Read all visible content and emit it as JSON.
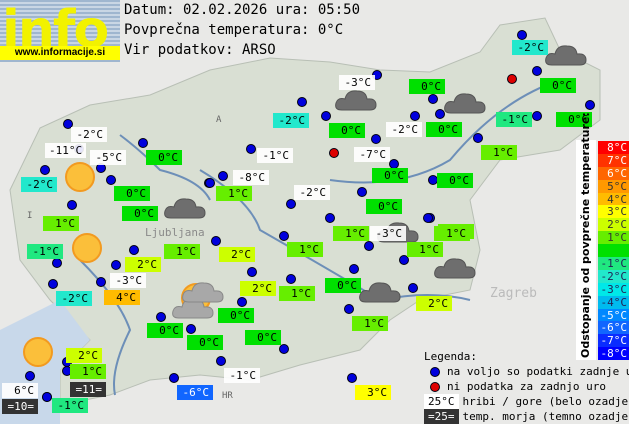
{
  "logo": {
    "text": "info",
    "url": "www.informacije.si"
  },
  "header": {
    "date_line": "Datum: 02.02.2026 ura: 05:50",
    "avg_line": "Povprečna temperatura: 0°C",
    "source_line": "Vir podatkov: ARSO"
  },
  "map_labels": [
    "A",
    "I",
    "HR",
    "Ljubljana",
    "Zagreb"
  ],
  "colors": {
    "white": "#ffffff",
    "-8": "#0000ff",
    "-7": "#0a2cff",
    "-6": "#1166ff",
    "-5": "#0088ff",
    "-4": "#00bbee",
    "-3": "#00e8e8",
    "-2": "#22e8cc",
    "-1": "#20e880",
    "0": "#00e000",
    "1": "#66ee00",
    "2": "#ccff00",
    "3": "#ffff00",
    "4": "#ffbb00",
    "5": "#ff9900",
    "6": "#ff6600",
    "7": "#ff3300",
    "8": "#ff0000",
    "sea": "#333333"
  },
  "stations": [
    {
      "t": "-2°C",
      "c": "-2"
    },
    {
      "t": "0°C",
      "c": "0"
    },
    {
      "t": "-1°C",
      "c": "-1"
    },
    {
      "t": "0°C",
      "c": "0"
    },
    {
      "t": "1°C",
      "c": "1"
    },
    {
      "t": "0°C",
      "c": "0"
    },
    {
      "t": "1°C",
      "c": "1"
    },
    {
      "t": "-3°C",
      "c": "white"
    },
    {
      "t": "0°C",
      "c": "0"
    },
    {
      "t": "-2°C",
      "c": "-2"
    },
    {
      "t": "0°C",
      "c": "0"
    },
    {
      "t": "-2°C",
      "c": "white"
    },
    {
      "t": "0°C",
      "c": "0"
    },
    {
      "t": "-1°C",
      "c": "white"
    },
    {
      "t": "-7°C",
      "c": "white"
    },
    {
      "t": "0°C",
      "c": "0"
    },
    {
      "t": "-8°C",
      "c": "white"
    },
    {
      "t": "1°C",
      "c": "1"
    },
    {
      "t": "-2°C",
      "c": "white"
    },
    {
      "t": "0°C",
      "c": "0"
    },
    {
      "t": "1°C",
      "c": "1"
    },
    {
      "t": "1°C",
      "c": "1"
    },
    {
      "t": "-3°C",
      "c": "white"
    },
    {
      "t": "1°C",
      "c": "1"
    },
    {
      "t": "1°C",
      "c": "1"
    },
    {
      "t": "2°C",
      "c": "2"
    },
    {
      "t": "2°C",
      "c": "2"
    },
    {
      "t": "1°C",
      "c": "1"
    },
    {
      "t": "0°C",
      "c": "0"
    },
    {
      "t": "2°C",
      "c": "2"
    },
    {
      "t": "1°C",
      "c": "1"
    },
    {
      "t": "0°C",
      "c": "0"
    },
    {
      "t": "0°C",
      "c": "0"
    },
    {
      "t": "-2°C",
      "c": "white"
    },
    {
      "t": "-11°C",
      "c": "white"
    },
    {
      "t": "-5°C",
      "c": "white"
    },
    {
      "t": "-2°C",
      "c": "-2"
    },
    {
      "t": "0°C",
      "c": "0"
    },
    {
      "t": "0°C",
      "c": "0"
    },
    {
      "t": "0°C",
      "c": "0"
    },
    {
      "t": "1°C",
      "c": "1"
    },
    {
      "t": "-1°C",
      "c": "-1"
    },
    {
      "t": "2°C",
      "c": "2"
    },
    {
      "t": "-3°C",
      "c": "white"
    },
    {
      "t": "-2°C",
      "c": "-2"
    },
    {
      "t": "4°C",
      "c": "4"
    },
    {
      "t": "0°C",
      "c": "0"
    },
    {
      "t": "0°C",
      "c": "0"
    },
    {
      "t": "2°C",
      "c": "2"
    },
    {
      "t": "1°C",
      "c": "1"
    },
    {
      "t": "=11=",
      "c": "sea"
    },
    {
      "t": "6°C",
      "c": "white"
    },
    {
      "t": "=10=",
      "c": "sea"
    },
    {
      "t": "-1°C",
      "c": "-1"
    },
    {
      "t": "-6°C",
      "c": "-6"
    },
    {
      "t": "-1°C",
      "c": "white"
    },
    {
      "t": "3°C",
      "c": "3"
    },
    {
      "t": "1°C",
      "c": "1"
    }
  ],
  "weather_icons": [
    "sun",
    "sun",
    "sun",
    "sun-cloud",
    "cloud",
    "cloud",
    "cloud",
    "cloud",
    "cloud",
    "cloud",
    "cloud"
  ],
  "scale": {
    "title": "Odstopanje od povprečne temperature:",
    "steps": [
      {
        "label": "8°C",
        "c": "8"
      },
      {
        "label": "7°C",
        "c": "7"
      },
      {
        "label": "6°C",
        "c": "6"
      },
      {
        "label": "5°C",
        "c": "5"
      },
      {
        "label": "4°C",
        "c": "4"
      },
      {
        "label": "3°C",
        "c": "3"
      },
      {
        "label": "2°C",
        "c": "2"
      },
      {
        "label": "1°C",
        "c": "1"
      },
      {
        "label": "",
        "c": "0"
      },
      {
        "label": "-1°C",
        "c": "-1"
      },
      {
        "label": "-2°C",
        "c": "-2"
      },
      {
        "label": "-3°C",
        "c": "-3"
      },
      {
        "label": "-4°C",
        "c": "-4"
      },
      {
        "label": "-5°C",
        "c": "-5"
      },
      {
        "label": "-6°C",
        "c": "-6"
      },
      {
        "label": "-7°C",
        "c": "-7"
      },
      {
        "label": "-8°C",
        "c": "-8"
      }
    ]
  },
  "legend": {
    "title": "Legenda:",
    "blue": "na voljo so podatki zadnje ure",
    "red": "ni podatka za zadnjo uro",
    "mountain_sample": "25°C",
    "mountain": "hribi / gore (belo ozadje)",
    "sea_sample": "=25=",
    "sea": "temp. morja (temno ozadje)"
  }
}
